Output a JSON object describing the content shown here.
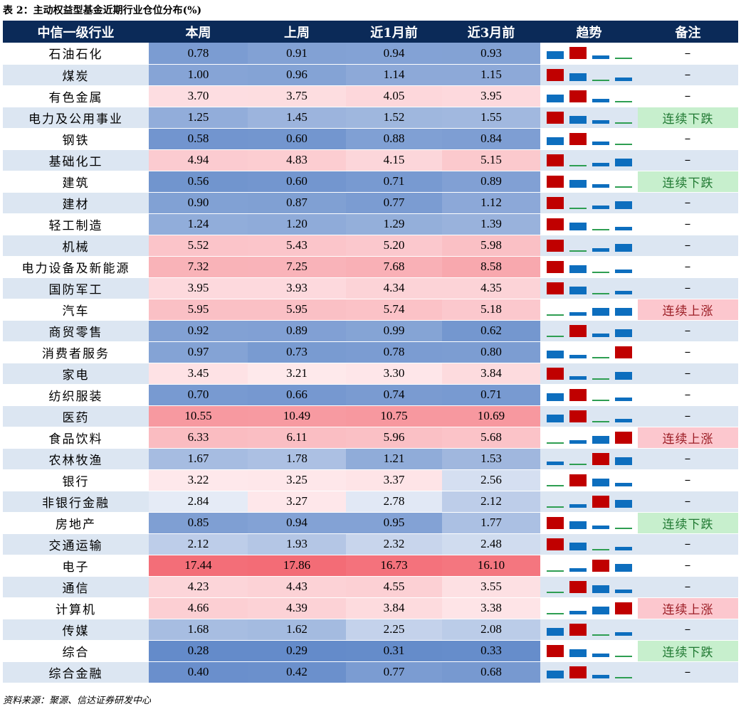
{
  "title": "表 2：主动权益型基金近期行业仓位分布(%)",
  "headers": [
    "中信一级行业",
    "本周",
    "上周",
    "近1月前",
    "近3月前",
    "趋势",
    "备注"
  ],
  "colors": {
    "header_bg": "#0b2a58",
    "bar_red": "#c00000",
    "bar_blue": "#0d6ebe",
    "flat_green": "#2e9e52",
    "note_down_bg": "#c7efcd",
    "note_up_bg": "#fcc7ce"
  },
  "rows": [
    {
      "name": "石油石化",
      "values": [
        0.78,
        0.91,
        0.94,
        0.93
      ],
      "note": "–"
    },
    {
      "name": "煤炭",
      "values": [
        1.0,
        0.96,
        1.14,
        1.15
      ],
      "note": "–"
    },
    {
      "name": "有色金属",
      "values": [
        3.7,
        3.75,
        4.05,
        3.95
      ],
      "note": "–"
    },
    {
      "name": "电力及公用事业",
      "values": [
        1.25,
        1.45,
        1.52,
        1.55
      ],
      "note": "连续下跌"
    },
    {
      "name": "钢铁",
      "values": [
        0.58,
        0.6,
        0.88,
        0.84
      ],
      "note": "–"
    },
    {
      "name": "基础化工",
      "values": [
        4.94,
        4.83,
        4.15,
        5.15
      ],
      "note": "–"
    },
    {
      "name": "建筑",
      "values": [
        0.56,
        0.6,
        0.71,
        0.89
      ],
      "note": "连续下跌"
    },
    {
      "name": "建材",
      "values": [
        0.9,
        0.87,
        0.77,
        1.12
      ],
      "note": "–"
    },
    {
      "name": "轻工制造",
      "values": [
        1.24,
        1.2,
        1.29,
        1.39
      ],
      "note": "–"
    },
    {
      "name": "机械",
      "values": [
        5.52,
        5.43,
        5.2,
        5.98
      ],
      "note": "–"
    },
    {
      "name": "电力设备及新能源",
      "values": [
        7.32,
        7.25,
        7.68,
        8.58
      ],
      "note": "–"
    },
    {
      "name": "国防军工",
      "values": [
        3.95,
        3.93,
        4.34,
        4.35
      ],
      "note": "–"
    },
    {
      "name": "汽车",
      "values": [
        5.95,
        5.95,
        5.74,
        5.18
      ],
      "note": "连续上涨"
    },
    {
      "name": "商贸零售",
      "values": [
        0.92,
        0.89,
        0.99,
        0.62
      ],
      "note": "–"
    },
    {
      "name": "消费者服务",
      "values": [
        0.97,
        0.73,
        0.78,
        0.8
      ],
      "note": "–"
    },
    {
      "name": "家电",
      "values": [
        3.45,
        3.21,
        3.3,
        3.84
      ],
      "note": "–"
    },
    {
      "name": "纺织服装",
      "values": [
        0.7,
        0.66,
        0.74,
        0.71
      ],
      "note": "–"
    },
    {
      "name": "医药",
      "values": [
        10.55,
        10.49,
        10.75,
        10.69
      ],
      "note": "–"
    },
    {
      "name": "食品饮料",
      "values": [
        6.33,
        6.11,
        5.96,
        5.68
      ],
      "note": "连续上涨"
    },
    {
      "name": "农林牧渔",
      "values": [
        1.67,
        1.78,
        1.21,
        1.53
      ],
      "note": "–"
    },
    {
      "name": "银行",
      "values": [
        3.22,
        3.25,
        3.37,
        2.56
      ],
      "note": "–"
    },
    {
      "name": "非银行金融",
      "values": [
        2.84,
        3.27,
        2.78,
        2.12
      ],
      "note": "–"
    },
    {
      "name": "房地产",
      "values": [
        0.85,
        0.94,
        0.95,
        1.77
      ],
      "note": "连续下跌"
    },
    {
      "name": "交通运输",
      "values": [
        2.12,
        1.93,
        2.32,
        2.48
      ],
      "note": "–"
    },
    {
      "name": "电子",
      "values": [
        17.44,
        17.86,
        16.73,
        16.1
      ],
      "note": "–"
    },
    {
      "name": "通信",
      "values": [
        4.23,
        4.43,
        4.55,
        3.55
      ],
      "note": "–"
    },
    {
      "name": "计算机",
      "values": [
        4.66,
        4.39,
        3.84,
        3.38
      ],
      "note": "连续上涨"
    },
    {
      "name": "传媒",
      "values": [
        1.68,
        1.62,
        2.25,
        2.08
      ],
      "note": "–"
    },
    {
      "name": "综合",
      "values": [
        0.28,
        0.29,
        0.31,
        0.33
      ],
      "note": "连续下跌"
    },
    {
      "name": "综合金融",
      "values": [
        0.4,
        0.42,
        0.77,
        0.68
      ],
      "note": "–"
    }
  ],
  "source": "资料来源：聚源、信达证券研发中心"
}
